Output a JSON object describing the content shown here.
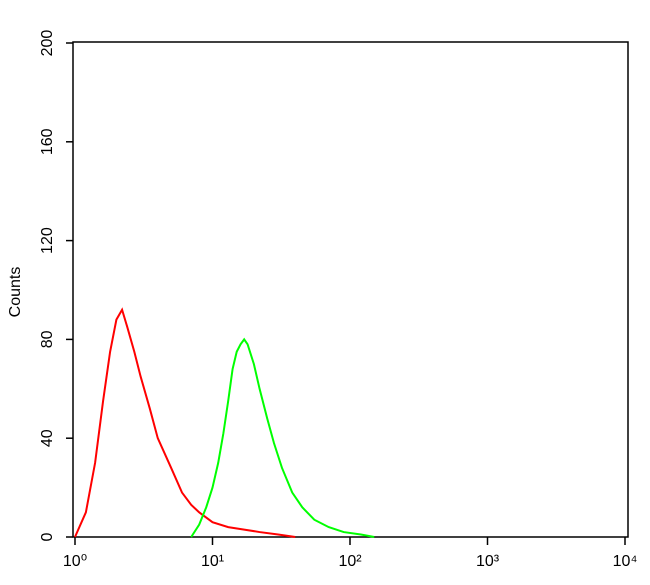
{
  "chart_data": {
    "type": "line",
    "y_label": "Counts",
    "xscale": "log",
    "xlim": [
      1,
      10000
    ],
    "xticks": [
      {
        "value": 1,
        "label": "10⁰"
      },
      {
        "value": 10,
        "label": "10¹"
      },
      {
        "value": 100,
        "label": "10²"
      },
      {
        "value": 1000,
        "label": "10³"
      },
      {
        "value": 10000,
        "label": "10⁴"
      }
    ],
    "ylim": [
      0,
      200
    ],
    "yticks": [
      0,
      40,
      80,
      120,
      160,
      200
    ],
    "series": [
      {
        "color": "#ff0000",
        "x": [
          1.0,
          1.2,
          1.4,
          1.6,
          1.8,
          2.0,
          2.2,
          2.4,
          2.7,
          3.0,
          3.5,
          4,
          5,
          6,
          7,
          8,
          10,
          13,
          17,
          22,
          30,
          40
        ],
        "values": [
          0,
          10,
          30,
          55,
          75,
          88,
          92,
          85,
          75,
          65,
          52,
          40,
          28,
          18,
          13,
          10,
          6,
          4,
          3,
          2,
          1,
          0
        ]
      },
      {
        "color": "#00ff00",
        "x": [
          7,
          8,
          9,
          10,
          11,
          12,
          13,
          14,
          15,
          16,
          17,
          18,
          20,
          22,
          25,
          28,
          32,
          38,
          45,
          55,
          70,
          90,
          120,
          150
        ],
        "values": [
          0,
          5,
          12,
          20,
          30,
          42,
          55,
          68,
          75,
          78,
          80,
          78,
          70,
          60,
          48,
          38,
          28,
          18,
          12,
          7,
          4,
          2,
          1,
          0
        ]
      }
    ]
  }
}
